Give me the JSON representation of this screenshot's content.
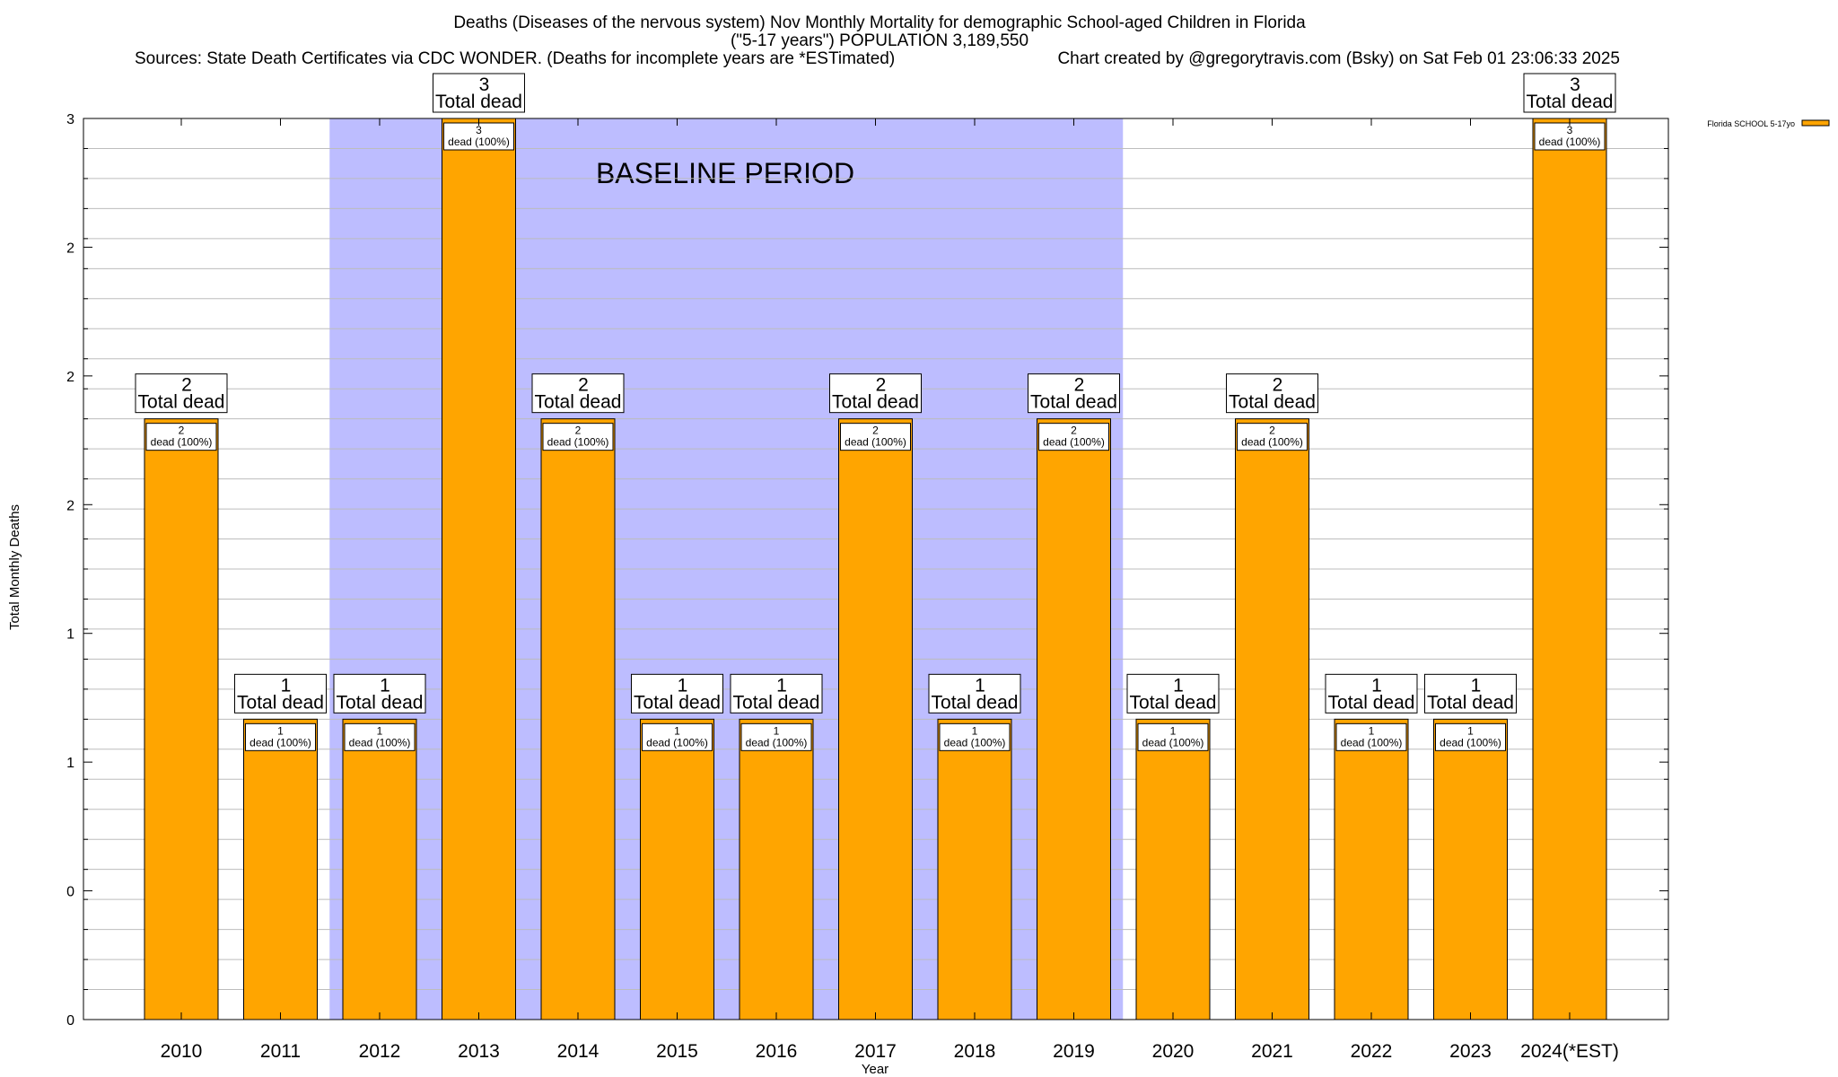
{
  "chart_data": {
    "type": "bar",
    "title_lines": [
      "Deaths (Diseases of the nervous system) Nov Monthly Mortality for demographic School-aged Children in Florida",
      "(\"5-17 years\") POPULATION 3,189,550"
    ],
    "sources": "Sources: State Death Certificates via CDC WONDER. (Deaths for incomplete years are *ESTimated)",
    "credit": "Chart created by @gregorytravis.com (Bsky) on Sat Feb 01 23:06:33 2025",
    "xlabel": "Year",
    "ylabel": "Total Monthly Deaths",
    "ylim": [
      0,
      3
    ],
    "y_tick_labels": [
      "0",
      "0",
      "1",
      "1",
      "2",
      "2",
      "2",
      "3"
    ],
    "categories": [
      "2010",
      "2011",
      "2012",
      "2013",
      "2014",
      "2015",
      "2016",
      "2017",
      "2018",
      "2019",
      "2020",
      "2021",
      "2022",
      "2023",
      "2024(*EST)"
    ],
    "series": [
      {
        "name": "Florida SCHOOL 5-17yo",
        "color": "#ffa500",
        "values": [
          2,
          1,
          1,
          3,
          2,
          1,
          1,
          2,
          1,
          2,
          1,
          2,
          1,
          1,
          3
        ]
      }
    ],
    "total_label_suffix": "Total dead",
    "inner_label_suffix": "dead (100%)",
    "baseline": {
      "label": "BASELINE PERIOD",
      "from_category": "2012",
      "to_category": "2019",
      "color": "#bdbdff"
    },
    "grid": true,
    "legend_placement": "top-right"
  }
}
